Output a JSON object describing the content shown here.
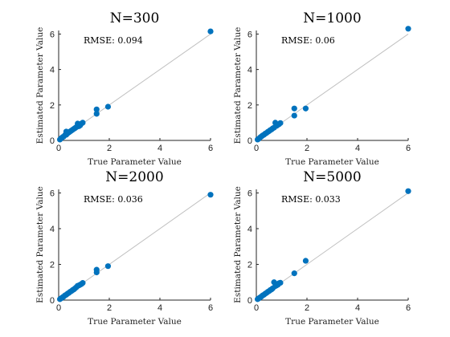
{
  "chart_data": [
    {
      "type": "scatter",
      "title": "N=300",
      "annotation": "RMSE: 0.094",
      "xlabel": "True Parameter Value",
      "ylabel": "Estimated Parameter Value",
      "xlim": [
        0,
        6
      ],
      "ylim": [
        0,
        6.2
      ],
      "xticks": [
        0,
        2,
        4,
        6
      ],
      "yticks": [
        0,
        2,
        4,
        6
      ],
      "reference_line": "y = x",
      "grid": false,
      "color": "#0072bd",
      "points": [
        [
          0.05,
          0.05
        ],
        [
          0.1,
          0.12
        ],
        [
          0.15,
          0.18
        ],
        [
          0.2,
          0.22
        ],
        [
          0.25,
          0.3
        ],
        [
          0.3,
          0.32
        ],
        [
          0.3,
          0.5
        ],
        [
          0.35,
          0.4
        ],
        [
          0.4,
          0.45
        ],
        [
          0.45,
          0.5
        ],
        [
          0.5,
          0.55
        ],
        [
          0.55,
          0.6
        ],
        [
          0.6,
          0.65
        ],
        [
          0.65,
          0.7
        ],
        [
          0.7,
          0.75
        ],
        [
          0.75,
          0.95
        ],
        [
          0.8,
          0.8
        ],
        [
          0.85,
          0.85
        ],
        [
          0.9,
          0.95
        ],
        [
          0.95,
          1.0
        ],
        [
          1.5,
          1.75
        ],
        [
          1.5,
          1.5
        ],
        [
          1.95,
          1.9
        ],
        [
          6.0,
          6.15
        ]
      ]
    },
    {
      "type": "scatter",
      "title": "N=1000",
      "annotation": "RMSE: 0.06",
      "xlabel": "True Parameter Value",
      "ylabel": "Estimated Parameter Value",
      "xlim": [
        0,
        6
      ],
      "ylim": [
        0,
        6.2
      ],
      "xticks": [
        0,
        2,
        4,
        6
      ],
      "yticks": [
        0,
        2,
        4,
        6
      ],
      "reference_line": "y = x",
      "grid": false,
      "color": "#0072bd",
      "points": [
        [
          0.05,
          0.05
        ],
        [
          0.1,
          0.1
        ],
        [
          0.15,
          0.17
        ],
        [
          0.2,
          0.22
        ],
        [
          0.25,
          0.28
        ],
        [
          0.3,
          0.32
        ],
        [
          0.35,
          0.38
        ],
        [
          0.4,
          0.42
        ],
        [
          0.45,
          0.48
        ],
        [
          0.5,
          0.52
        ],
        [
          0.55,
          0.58
        ],
        [
          0.6,
          0.62
        ],
        [
          0.65,
          0.68
        ],
        [
          0.7,
          0.72
        ],
        [
          0.75,
          1.0
        ],
        [
          0.8,
          0.82
        ],
        [
          0.85,
          0.88
        ],
        [
          0.9,
          0.92
        ],
        [
          0.95,
          0.98
        ],
        [
          1.5,
          1.8
        ],
        [
          1.5,
          1.4
        ],
        [
          1.95,
          1.8
        ],
        [
          6.0,
          6.3
        ]
      ]
    },
    {
      "type": "scatter",
      "title": "N=2000",
      "annotation": "RMSE: 0.036",
      "xlabel": "True Parameter Value",
      "ylabel": "Estimated Parameter Value",
      "xlim": [
        0,
        6
      ],
      "ylim": [
        0,
        6.2
      ],
      "xticks": [
        0,
        2,
        4,
        6
      ],
      "yticks": [
        0,
        2,
        4,
        6
      ],
      "reference_line": "y = x",
      "grid": false,
      "color": "#0072bd",
      "points": [
        [
          0.05,
          0.05
        ],
        [
          0.1,
          0.1
        ],
        [
          0.15,
          0.15
        ],
        [
          0.2,
          0.2
        ],
        [
          0.25,
          0.26
        ],
        [
          0.3,
          0.3
        ],
        [
          0.35,
          0.36
        ],
        [
          0.4,
          0.4
        ],
        [
          0.45,
          0.46
        ],
        [
          0.5,
          0.5
        ],
        [
          0.55,
          0.56
        ],
        [
          0.6,
          0.6
        ],
        [
          0.65,
          0.66
        ],
        [
          0.7,
          0.72
        ],
        [
          0.75,
          0.8
        ],
        [
          0.8,
          0.82
        ],
        [
          0.85,
          0.86
        ],
        [
          0.9,
          0.9
        ],
        [
          0.95,
          0.96
        ],
        [
          1.5,
          1.7
        ],
        [
          1.5,
          1.55
        ],
        [
          1.95,
          1.9
        ],
        [
          6.0,
          5.9
        ]
      ]
    },
    {
      "type": "scatter",
      "title": "N=5000",
      "annotation": "RMSE: 0.033",
      "xlabel": "True Parameter Value",
      "ylabel": "Estimated Parameter Value",
      "xlim": [
        0,
        6
      ],
      "ylim": [
        0,
        6.2
      ],
      "xticks": [
        0,
        2,
        4,
        6
      ],
      "yticks": [
        0,
        2,
        4,
        6
      ],
      "reference_line": "y = x",
      "grid": false,
      "color": "#0072bd",
      "points": [
        [
          0.05,
          0.05
        ],
        [
          0.1,
          0.1
        ],
        [
          0.15,
          0.15
        ],
        [
          0.2,
          0.2
        ],
        [
          0.25,
          0.26
        ],
        [
          0.3,
          0.3
        ],
        [
          0.35,
          0.36
        ],
        [
          0.4,
          0.4
        ],
        [
          0.45,
          0.46
        ],
        [
          0.5,
          0.5
        ],
        [
          0.55,
          0.56
        ],
        [
          0.6,
          0.6
        ],
        [
          0.65,
          0.66
        ],
        [
          0.7,
          1.0
        ],
        [
          0.75,
          0.78
        ],
        [
          0.8,
          0.82
        ],
        [
          0.85,
          0.86
        ],
        [
          0.9,
          0.95
        ],
        [
          0.95,
          0.97
        ],
        [
          1.5,
          1.5
        ],
        [
          1.95,
          2.2
        ],
        [
          6.0,
          6.1
        ]
      ]
    }
  ]
}
